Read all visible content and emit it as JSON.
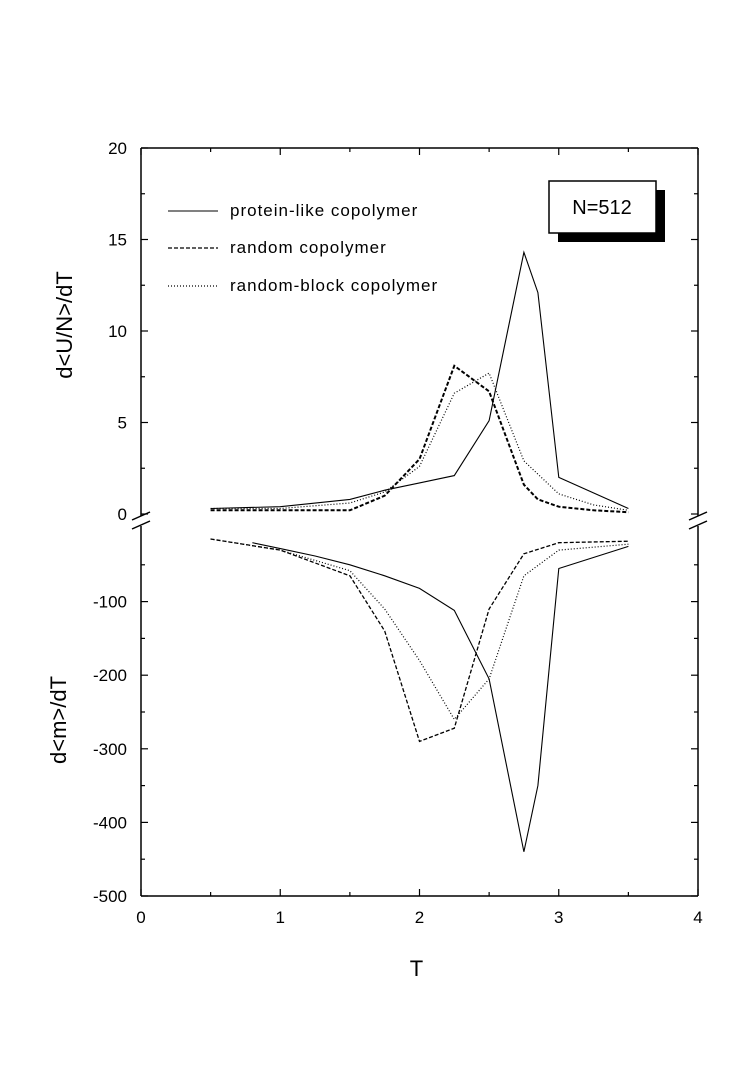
{
  "chart_data": {
    "type": "line",
    "x_axis": {
      "label": "T",
      "range": [
        0,
        4
      ],
      "ticks": [
        "0",
        "1",
        "2",
        "3",
        "4"
      ]
    },
    "panels": [
      {
        "id": "upper",
        "ylabel": "d<U/N>/dT",
        "ylim": [
          0,
          20
        ],
        "ticks": [
          "0",
          "5",
          "10",
          "15",
          "20"
        ],
        "series": [
          {
            "name": "protein-like copolymer",
            "line_style": "solid",
            "x": [
              0.5,
              1.0,
              1.5,
              1.75,
              2.0,
              2.25,
              2.5,
              2.75,
              2.85,
              3.0,
              3.5
            ],
            "values": [
              0.3,
              0.4,
              0.8,
              1.3,
              1.7,
              2.1,
              5.1,
              14.3,
              12.1,
              2.0,
              0.3
            ]
          },
          {
            "name": "random copolymer",
            "line_style": "dashed",
            "x": [
              0.5,
              1.0,
              1.5,
              1.75,
              2.0,
              2.25,
              2.5,
              2.75,
              2.85,
              3.0,
              3.25,
              3.5
            ],
            "values": [
              0.2,
              0.2,
              0.2,
              1.0,
              3.0,
              8.1,
              6.7,
              1.6,
              0.8,
              0.4,
              0.2,
              0.1
            ]
          },
          {
            "name": "random-block copolymer",
            "line_style": "dotted",
            "x": [
              0.5,
              1.0,
              1.5,
              1.75,
              2.0,
              2.25,
              2.5,
              2.75,
              3.0,
              3.25,
              3.5
            ],
            "values": [
              0.3,
              0.3,
              0.6,
              1.2,
              2.6,
              6.6,
              7.7,
              2.9,
              1.1,
              0.5,
              0.2
            ]
          }
        ]
      },
      {
        "id": "lower",
        "ylabel": "d<m>/dT",
        "ylim": [
          -500,
          0
        ],
        "ticks": [
          "-500",
          "-400",
          "-300",
          "-200",
          "-100"
        ],
        "series": [
          {
            "name": "protein-like copolymer",
            "line_style": "solid",
            "x": [
              0.8,
              1.0,
              1.25,
              1.5,
              1.75,
              2.0,
              2.25,
              2.5,
              2.75,
              2.85,
              3.0,
              3.5
            ],
            "values": [
              -20,
              -28,
              -38,
              -50,
              -65,
              -82,
              -112,
              -205,
              -440,
              -350,
              -55,
              -25
            ]
          },
          {
            "name": "random copolymer",
            "line_style": "dashed",
            "x": [
              0.5,
              1.0,
              1.5,
              1.75,
              2.0,
              2.25,
              2.5,
              2.75,
              3.0,
              3.5
            ],
            "values": [
              -15,
              -30,
              -65,
              -140,
              -290,
              -272,
              -110,
              -35,
              -20,
              -18
            ]
          },
          {
            "name": "random-block copolymer",
            "line_style": "dotted",
            "x": [
              0.5,
              1.0,
              1.5,
              1.75,
              2.0,
              2.25,
              2.5,
              2.75,
              3.0,
              3.5
            ],
            "values": [
              -15,
              -30,
              -58,
              -110,
              -180,
              -260,
              -205,
              -65,
              -30,
              -22
            ]
          }
        ]
      }
    ],
    "legend": {
      "placement": "top-left",
      "entries": [
        {
          "label": "protein-like copolymer",
          "line_style": "solid"
        },
        {
          "label": "random copolymer",
          "line_style": "dashed"
        },
        {
          "label": "random-block copolymer",
          "line_style": "dotted"
        }
      ]
    },
    "annotation": {
      "text": "N=512",
      "placement": "top-right"
    },
    "grid": false
  }
}
